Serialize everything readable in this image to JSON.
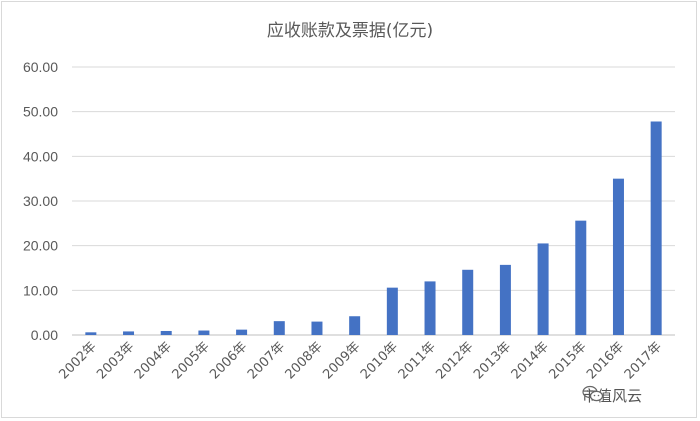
{
  "chart_data": {
    "type": "bar",
    "title": "应收账款及票据(亿元)",
    "categories": [
      "2002年",
      "2003年",
      "2004年",
      "2005年",
      "2006年",
      "2007年",
      "2008年",
      "2009年",
      "2010年",
      "2011年",
      "2012年",
      "2013年",
      "2014年",
      "2015年",
      "2016年",
      "2017年"
    ],
    "values": [
      0.6,
      0.8,
      0.9,
      1.0,
      1.2,
      3.1,
      3.0,
      4.2,
      10.6,
      12.0,
      14.6,
      15.7,
      20.5,
      25.6,
      35.0,
      47.8
    ],
    "ylim": [
      0,
      60
    ],
    "yticks": [
      "0.00",
      "10.00",
      "20.00",
      "30.00",
      "40.00",
      "50.00",
      "60.00"
    ],
    "grid": true,
    "bar_color": "#4472C4"
  },
  "watermark": {
    "text": "市值风云",
    "icon": "wechat-icon"
  }
}
